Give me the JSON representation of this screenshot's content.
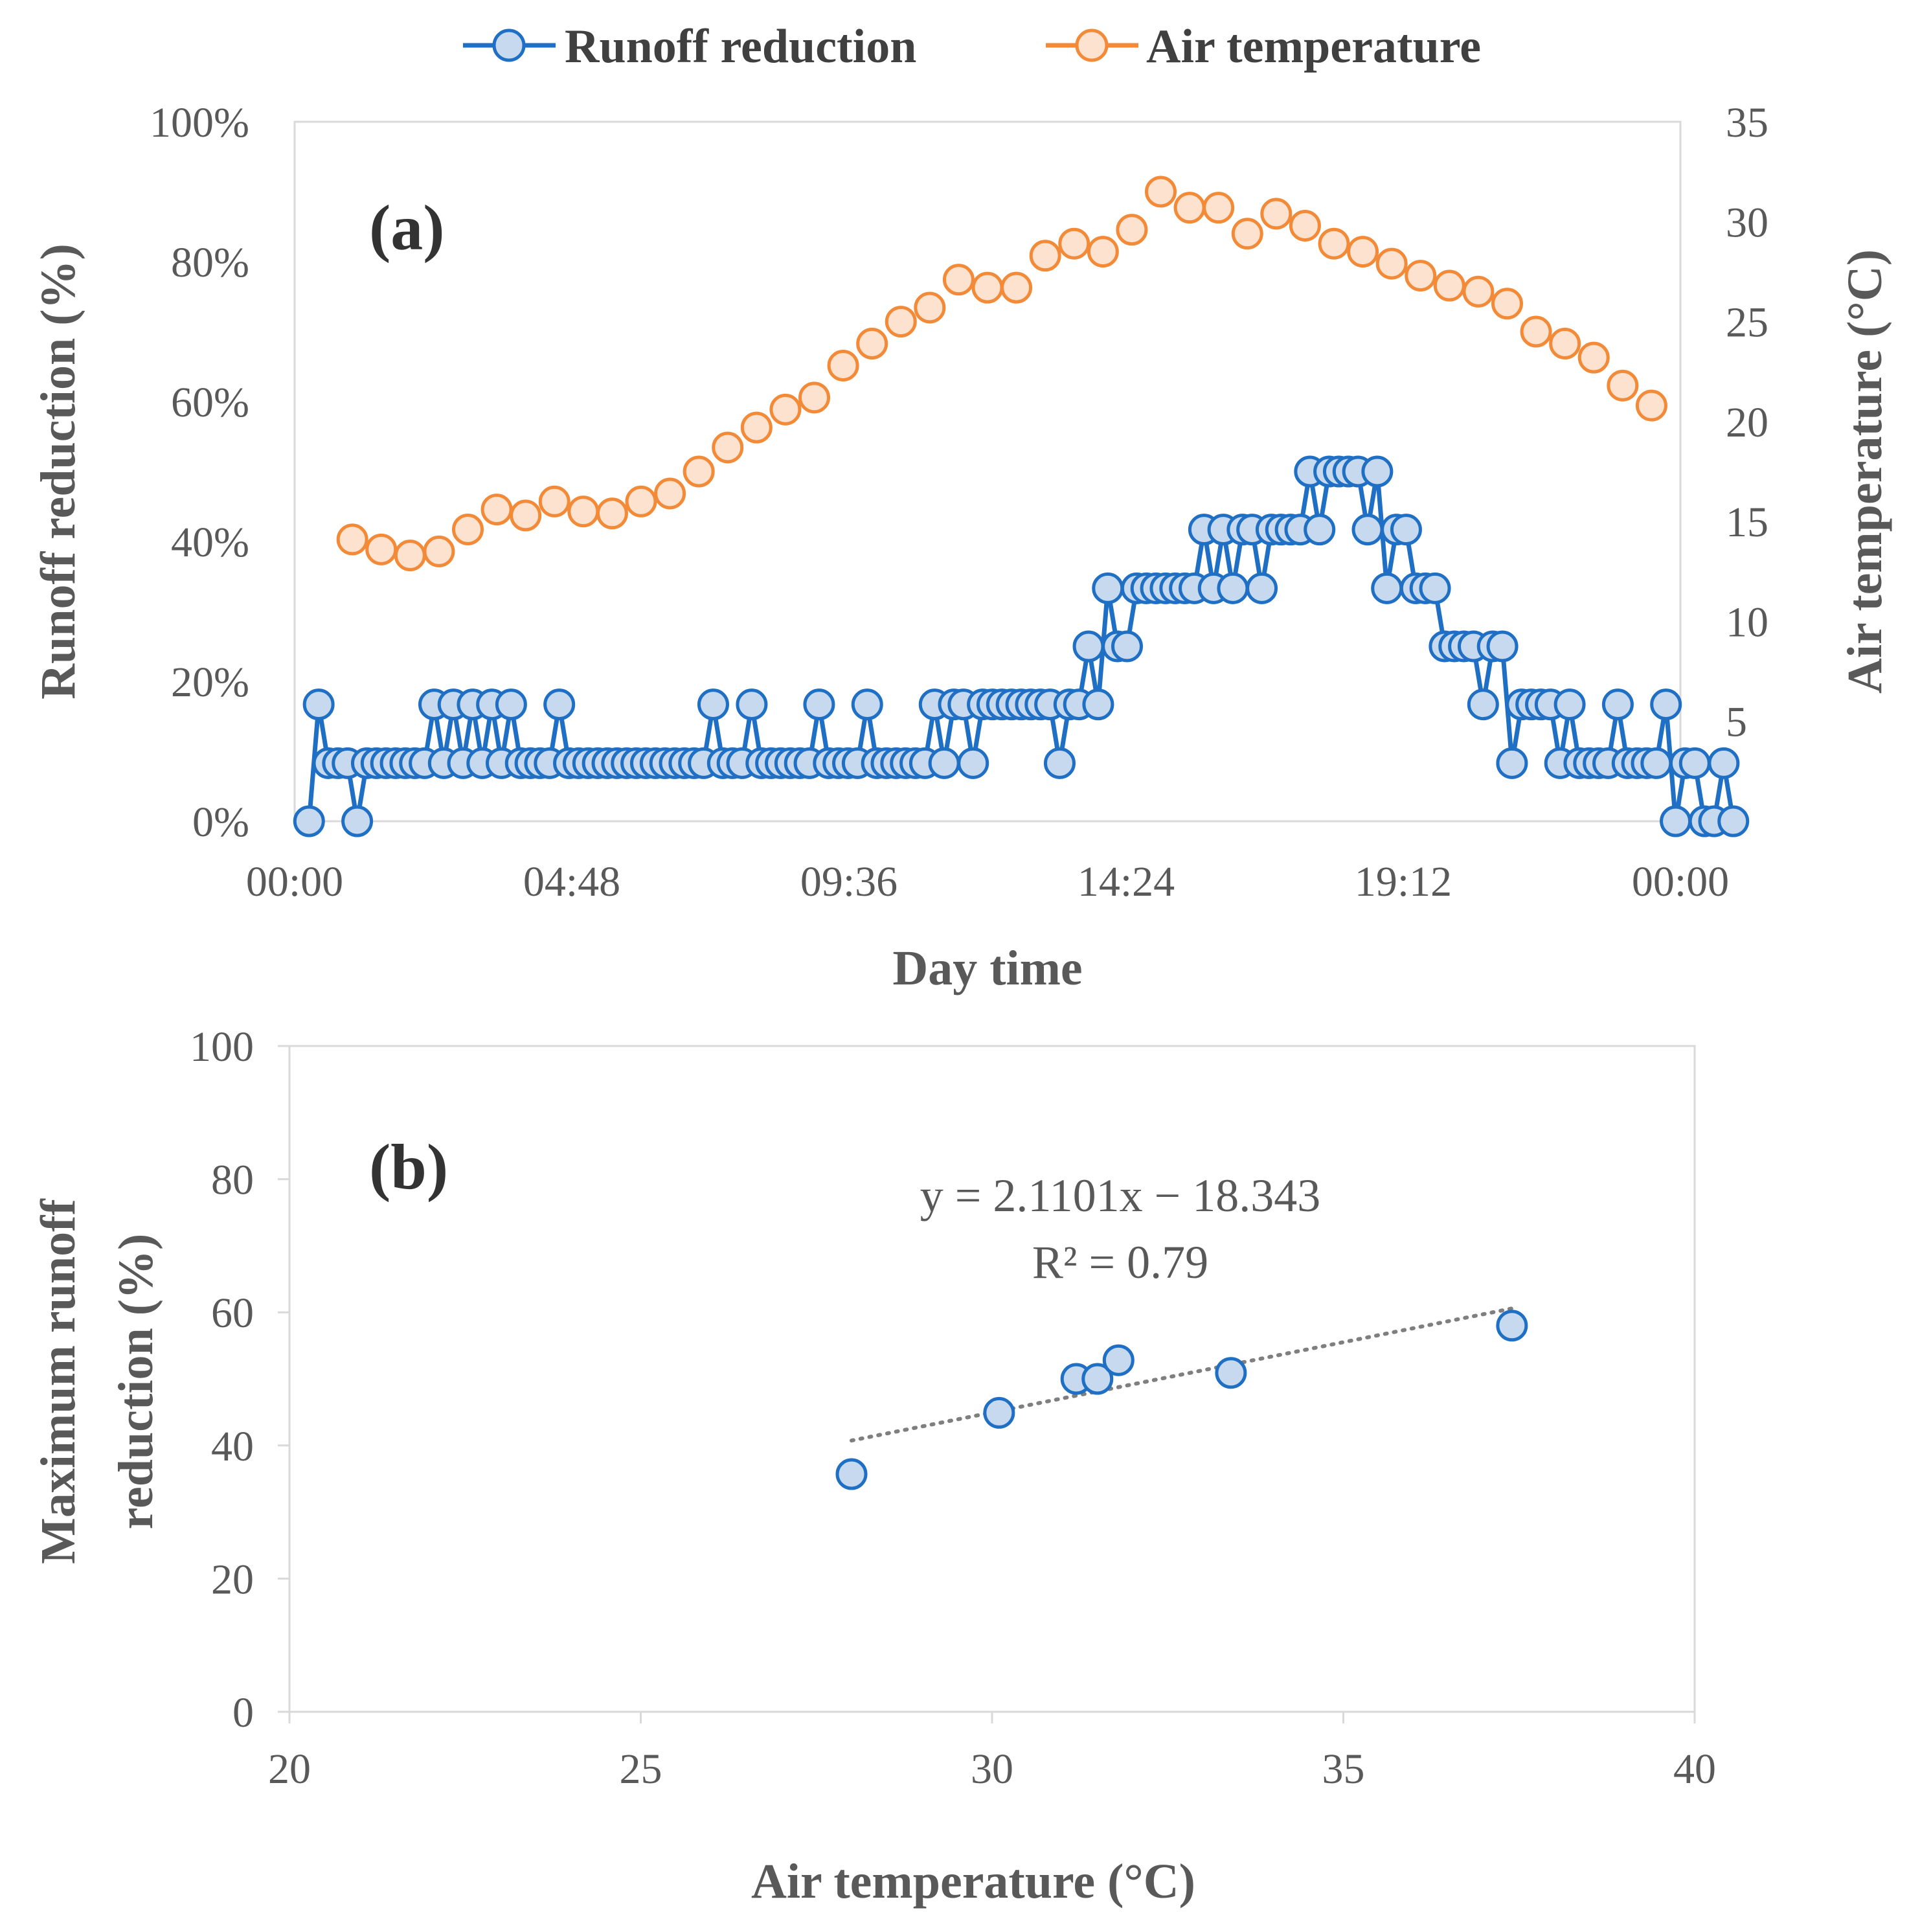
{
  "colors": {
    "runoff_line": "#1f6fc5",
    "runoff_fill": "#c6d9ee",
    "temp_line": "#f28a38",
    "temp_fill": "#fde3cf",
    "axis": "#d9d9d9",
    "text": "#595959",
    "trend": "#7f7f7f"
  },
  "chart_data": [
    {
      "id": "a",
      "type": "line",
      "panel_label": "(a)",
      "xlabel": "Day time",
      "ylabel": "Runoff reduction (%)",
      "y2label": "Air temperature (°C)",
      "xlim": [
        0,
        1440
      ],
      "x_ticks": [
        0,
        288,
        576,
        864,
        1152,
        1440
      ],
      "x_tick_labels": [
        "00:00",
        "04:48",
        "09:36",
        "14:24",
        "19:12",
        "00:00"
      ],
      "ylim": [
        0,
        100
      ],
      "y_ticks": [
        0,
        20,
        40,
        60,
        80,
        100
      ],
      "y_tick_labels": [
        "0%",
        "20%",
        "40%",
        "60%",
        "80%",
        "100%"
      ],
      "y2lim": [
        0,
        35
      ],
      "y2_ticks": [
        0,
        5,
        10,
        15,
        20,
        25,
        30,
        35
      ],
      "y2_tick_labels": [
        "0",
        "5",
        "10",
        "15",
        "20",
        "25",
        "30",
        "35"
      ],
      "legend_position": "top",
      "series": [
        {
          "name": "Runoff reduction",
          "axis": "left",
          "x_start": 15,
          "x_step": 10,
          "values": [
            0,
            16.7,
            8.3,
            8.3,
            8.3,
            0,
            8.3,
            8.3,
            8.3,
            8.3,
            8.3,
            8.3,
            8.3,
            16.7,
            8.3,
            16.7,
            8.3,
            16.7,
            8.3,
            16.7,
            8.3,
            16.7,
            8.3,
            8.3,
            8.3,
            8.3,
            16.7,
            8.3,
            8.3,
            8.3,
            8.3,
            8.3,
            8.3,
            8.3,
            8.3,
            8.3,
            8.3,
            8.3,
            8.3,
            8.3,
            8.3,
            8.3,
            16.7,
            8.3,
            8.3,
            8.3,
            16.7,
            8.3,
            8.3,
            8.3,
            8.3,
            8.3,
            8.3,
            16.7,
            8.3,
            8.3,
            8.3,
            8.3,
            16.7,
            8.3,
            8.3,
            8.3,
            8.3,
            8.3,
            8.3,
            16.7,
            8.3,
            16.7,
            16.7,
            8.3,
            16.7,
            16.7,
            16.7,
            16.7,
            16.7,
            16.7,
            16.7,
            16.7,
            8.3,
            16.7,
            16.7,
            25,
            16.7,
            33.3,
            25,
            25,
            33.3,
            33.3,
            33.3,
            33.3,
            33.3,
            33.3,
            33.3,
            41.7,
            33.3,
            41.7,
            33.3,
            41.7,
            41.7,
            33.3,
            41.7,
            41.7,
            41.7,
            41.7,
            50,
            41.7,
            50,
            50,
            50,
            50,
            41.7,
            50,
            33.3,
            41.7,
            41.7,
            33.3,
            33.3,
            33.3,
            25,
            25,
            25,
            25,
            16.7,
            25,
            25,
            8.3,
            16.7,
            16.7,
            16.7,
            16.7,
            8.3,
            16.7,
            8.3,
            8.3,
            8.3,
            8.3,
            16.7,
            8.3,
            8.3,
            8.3,
            8.3,
            16.7,
            0,
            8.3,
            8.3,
            0,
            0,
            8.3,
            0
          ]
        },
        {
          "name": "Air temperature",
          "axis": "right",
          "x_start": 60,
          "x_step": 30,
          "values": [
            14.1,
            13.6,
            13.3,
            13.5,
            14.6,
            15.6,
            15.3,
            16.0,
            15.5,
            15.4,
            16.0,
            16.4,
            17.5,
            18.7,
            19.7,
            20.6,
            21.2,
            22.8,
            23.9,
            25.0,
            25.7,
            27.1,
            26.7,
            26.7,
            28.3,
            28.9,
            28.5,
            29.6,
            31.5,
            30.7,
            30.7,
            29.4,
            30.4,
            29.8,
            28.9,
            28.5,
            27.9,
            27.3,
            26.8,
            26.5,
            25.9,
            24.5,
            23.9,
            23.2,
            21.8,
            20.8
          ]
        }
      ]
    },
    {
      "id": "b",
      "type": "scatter",
      "panel_label": "(b)",
      "xlabel": "Air temperature (°C)",
      "ylabel_lines": [
        "Maximum runoff",
        "reduction (%)"
      ],
      "xlim": [
        20,
        40
      ],
      "x_ticks": [
        20,
        25,
        30,
        35,
        40
      ],
      "x_tick_labels": [
        "20",
        "25",
        "30",
        "35",
        "40"
      ],
      "ylim": [
        0,
        100
      ],
      "y_ticks": [
        0,
        20,
        40,
        60,
        80,
        100
      ],
      "y_tick_labels": [
        "0",
        "20",
        "40",
        "60",
        "80",
        "100"
      ],
      "points": [
        {
          "x": 28.0,
          "y": 35.7
        },
        {
          "x": 30.1,
          "y": 44.9
        },
        {
          "x": 31.2,
          "y": 50.0
        },
        {
          "x": 31.5,
          "y": 50.0
        },
        {
          "x": 31.8,
          "y": 52.8
        },
        {
          "x": 33.4,
          "y": 50.9
        },
        {
          "x": 37.4,
          "y": 58.0
        }
      ],
      "trendline": {
        "slope": 2.1101,
        "intercept": -18.343,
        "x_range": [
          28.0,
          37.4
        ],
        "equation": "y = 2.1101x − 18.343",
        "r_squared": "R² = 0.79"
      }
    }
  ]
}
